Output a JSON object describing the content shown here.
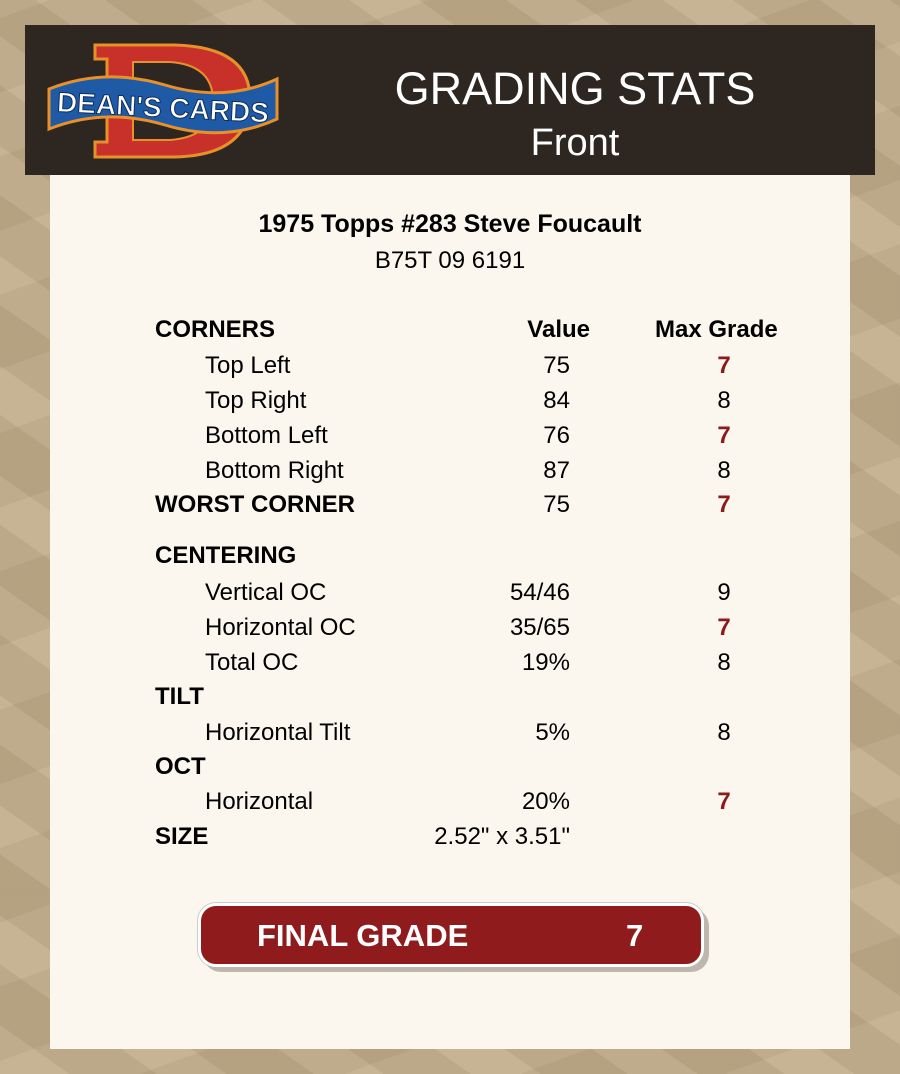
{
  "header": {
    "logo_text": "DEAN'S CARDS",
    "title": "GRADING STATS",
    "subtitle": "Front"
  },
  "card": {
    "name": "1975 Topps #283 Steve Foucault",
    "id": "B75T 09 6191"
  },
  "columns": {
    "value": "Value",
    "max_grade": "Max Grade"
  },
  "colors": {
    "red_grade": "#8b1a1a",
    "final_bg": "#8f1b1d",
    "header_bg": "#2e2620"
  },
  "rows": [
    {
      "type": "section",
      "label": "CORNERS"
    },
    {
      "type": "item",
      "label": "Top Left",
      "value": "75",
      "grade": "7",
      "highlight": true
    },
    {
      "type": "item",
      "label": "Top Right",
      "value": "84",
      "grade": "8",
      "highlight": false
    },
    {
      "type": "item",
      "label": "Bottom Left",
      "value": "76",
      "grade": "7",
      "highlight": true
    },
    {
      "type": "item",
      "label": "Bottom Right",
      "value": "87",
      "grade": "8",
      "highlight": false
    },
    {
      "type": "section",
      "label": "WORST CORNER",
      "value": "75",
      "grade": "7",
      "highlight": true
    },
    {
      "type": "section",
      "label": "CENTERING"
    },
    {
      "type": "item",
      "label": "Vertical OC",
      "value": "54/46",
      "grade": "9",
      "highlight": false
    },
    {
      "type": "item",
      "label": "Horizontal OC",
      "value": "35/65",
      "grade": "7",
      "highlight": true
    },
    {
      "type": "item",
      "label": "Total OC",
      "value": "19%",
      "grade": "8",
      "highlight": false
    },
    {
      "type": "section",
      "label": "TILT"
    },
    {
      "type": "item",
      "label": "Horizontal Tilt",
      "value": "5%",
      "grade": "8",
      "highlight": false
    },
    {
      "type": "section",
      "label": "OCT"
    },
    {
      "type": "item",
      "label": "Horizontal",
      "value": "20%",
      "grade": "7",
      "highlight": true
    },
    {
      "type": "section",
      "label": "SIZE",
      "value": "2.52\" x 3.51\""
    }
  ],
  "final": {
    "label": "FINAL GRADE",
    "grade": "7"
  }
}
